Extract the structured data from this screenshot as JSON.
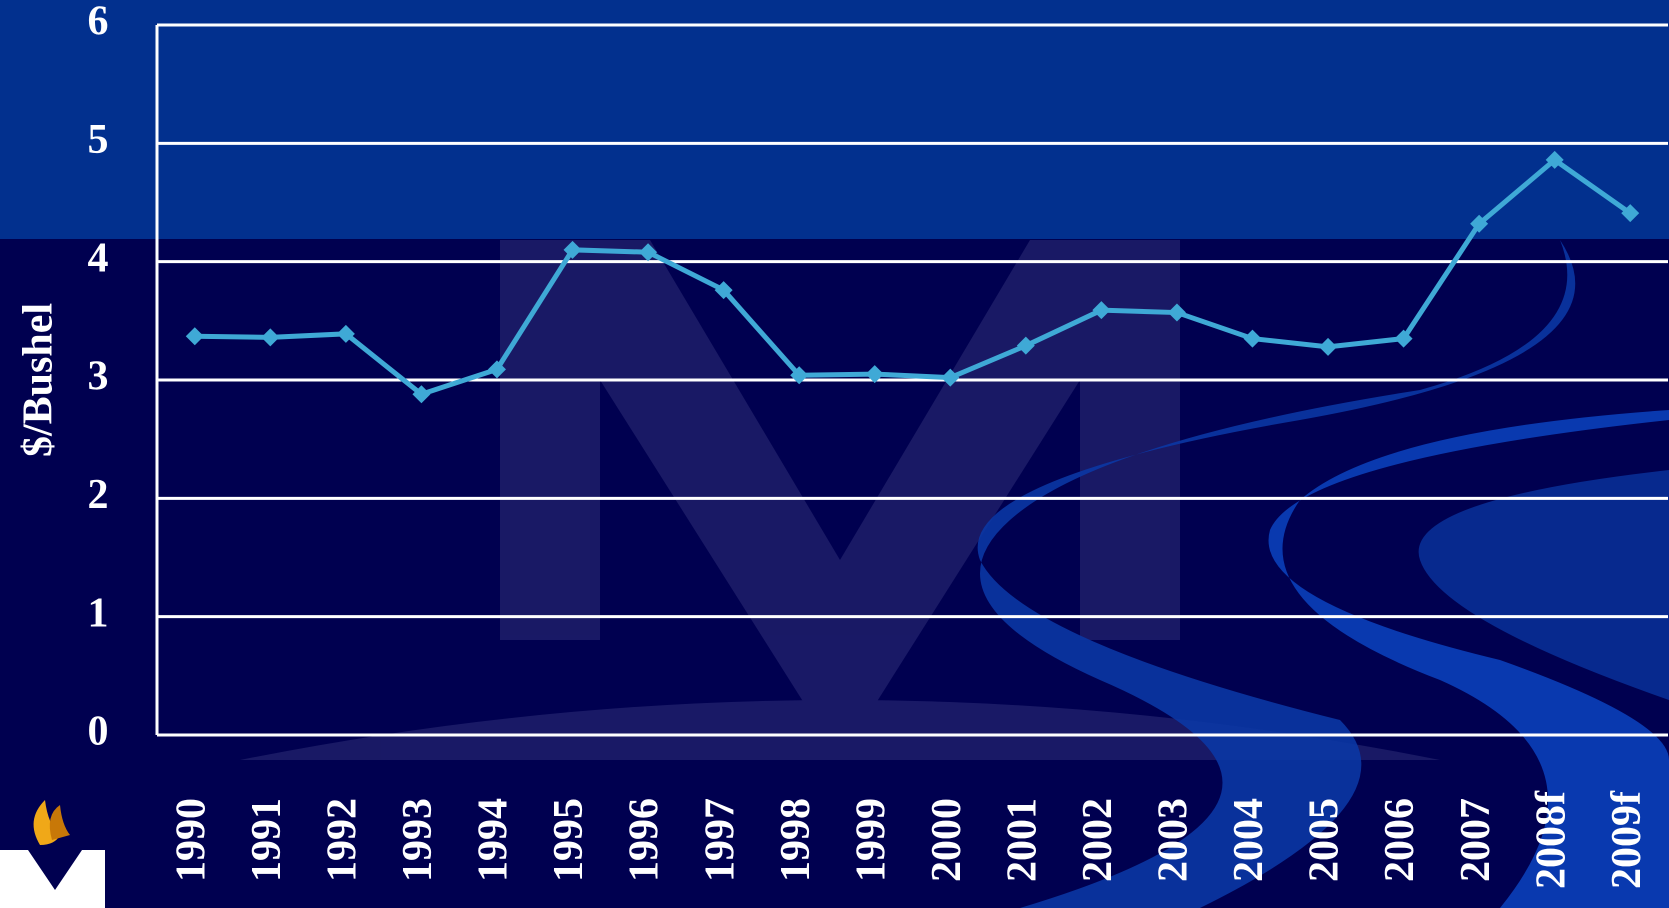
{
  "chart_data": {
    "type": "line",
    "y_label": "$/Bushel",
    "categories": [
      "1990",
      "1991",
      "1992",
      "1993",
      "1994",
      "1995",
      "1996",
      "1997",
      "1998",
      "1999",
      "2000",
      "2001",
      "2002",
      "2003",
      "2004",
      "2005",
      "2006",
      "2007",
      "2008f",
      "2009f"
    ],
    "series": [
      {
        "color": "#3fa9d6",
        "values": [
          3.37,
          3.36,
          3.39,
          2.88,
          3.09,
          4.1,
          4.08,
          3.76,
          3.04,
          3.05,
          3.02,
          3.29,
          3.59,
          3.57,
          3.35,
          3.28,
          3.35,
          4.32,
          4.86,
          4.41
        ]
      }
    ],
    "ylim": [
      0,
      6
    ],
    "yticks": [
      0,
      1,
      2,
      3,
      4,
      5,
      6
    ],
    "grid": true
  }
}
